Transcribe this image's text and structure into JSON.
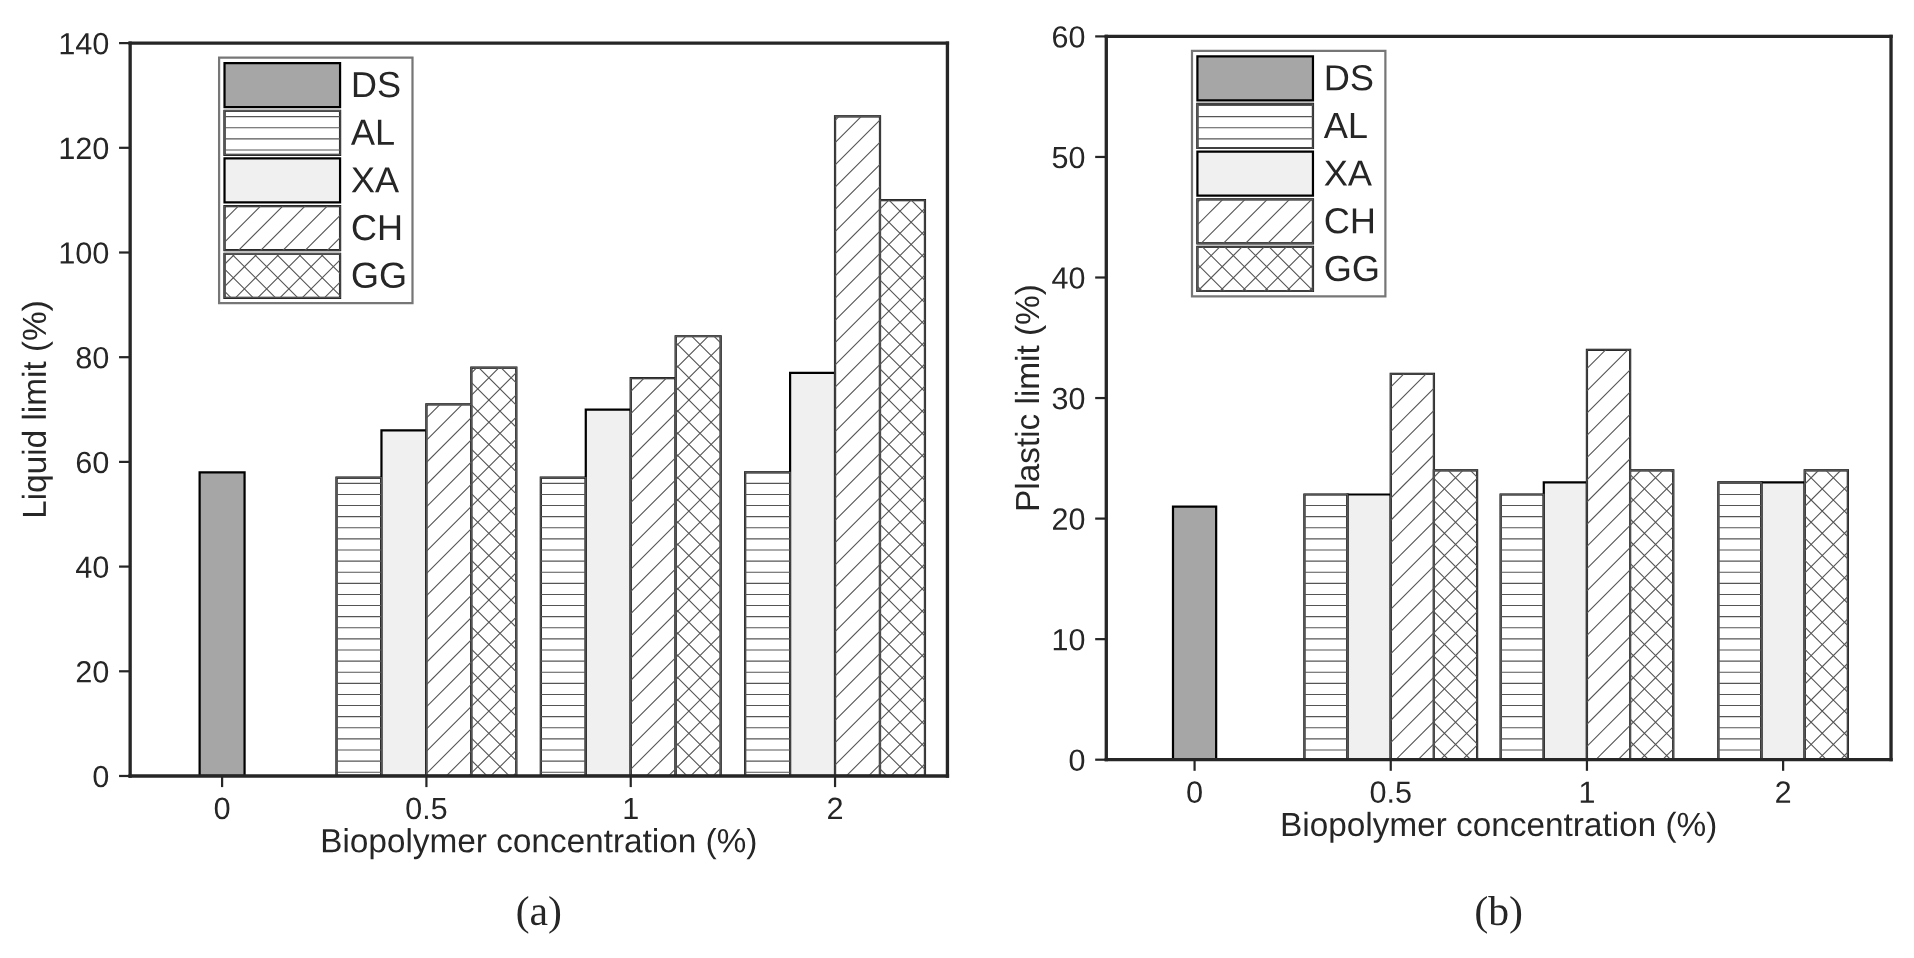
{
  "chart_data": [
    {
      "type": "bar",
      "xlabel": "Biopolymer concentration (%)",
      "ylabel": "Liquid limit (%)",
      "categories": [
        "0",
        "0.5",
        "1",
        "2"
      ],
      "series": [
        {
          "name": "DS",
          "color": "#a6a6a6",
          "values": [
            58,
            null,
            null,
            null
          ]
        },
        {
          "name": "AL",
          "color": "#ffffff",
          "values": [
            null,
            57,
            57,
            58
          ]
        },
        {
          "name": "XA",
          "color": "#f0f0f0",
          "values": [
            null,
            66,
            70,
            77
          ]
        },
        {
          "name": "CH",
          "color": "#ffffff",
          "values": [
            null,
            71,
            76,
            126
          ]
        },
        {
          "name": "GG",
          "color": "#ffffff",
          "values": [
            null,
            78,
            84,
            110
          ]
        }
      ],
      "ylim": [
        0,
        140
      ],
      "yticks": [
        0,
        20,
        40,
        60,
        80,
        100,
        120,
        140
      ],
      "legend": "top left",
      "annotations": [
        "(a)"
      ]
    },
    {
      "type": "bar",
      "xlabel": "Biopolymer concentration (%)",
      "ylabel": "Plastic limit (%)",
      "categories": [
        "0",
        "0.5",
        "1",
        "2"
      ],
      "series": [
        {
          "name": "DS",
          "color": "#a6a6a6",
          "values": [
            21,
            null,
            null,
            null
          ]
        },
        {
          "name": "AL",
          "color": "#ffffff",
          "values": [
            null,
            22,
            22,
            23
          ]
        },
        {
          "name": "XA",
          "color": "#f0f0f0",
          "values": [
            null,
            22,
            23,
            23
          ]
        },
        {
          "name": "CH",
          "color": "#ffffff",
          "values": [
            null,
            32,
            34,
            null
          ]
        },
        {
          "name": "GG",
          "color": "#ffffff",
          "values": [
            null,
            24,
            24,
            24
          ]
        }
      ],
      "ylim": [
        0,
        60
      ],
      "yticks": [
        0,
        10,
        20,
        30,
        40,
        50,
        60
      ],
      "legend": "top left",
      "annotations": [
        "(b)"
      ]
    }
  ]
}
